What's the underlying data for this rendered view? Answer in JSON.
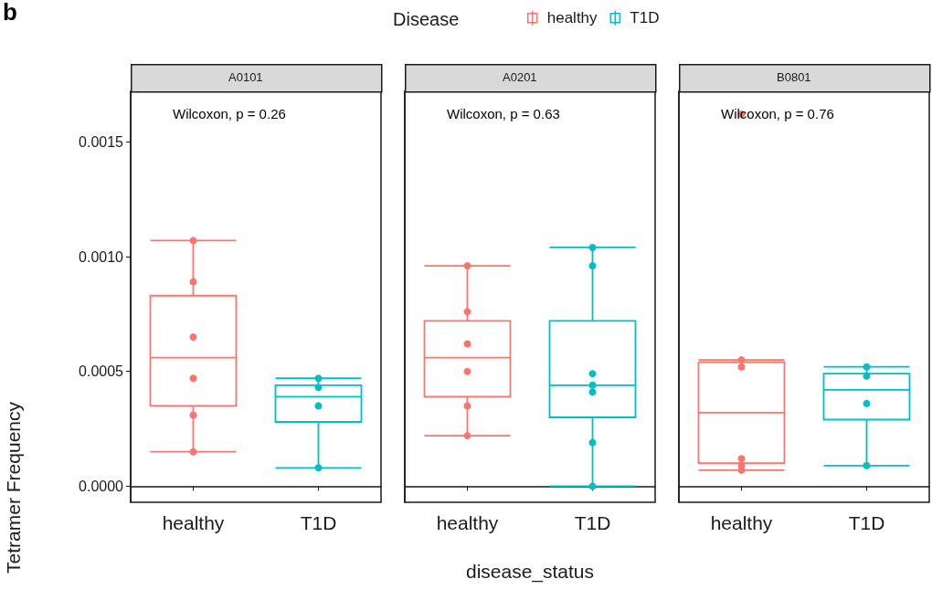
{
  "chart_data": [
    {
      "type": "box",
      "title": "A0101",
      "annotations": [
        "b",
        "Wilcoxon, p = 0.26"
      ],
      "ylabel": "Tetramer Frequency",
      "legend_title": "Disease",
      "legend": "top",
      "categories": [
        "healthy",
        "T1D"
      ],
      "ylim": [
        -7e-05,
        0.00172
      ],
      "yticks": [
        {
          "value": 0,
          "label": "0.0000"
        },
        {
          "value": 0.0005,
          "label": "0.0005"
        },
        {
          "value": 0.001,
          "label": "0.0010"
        },
        {
          "value": 0.0015,
          "label": "0.0015"
        }
      ],
      "series": [
        {
          "color": "#f8766d",
          "x": [
            "healthy"
          ],
          "boxes": [
            {
              "low": 0.00015,
              "q1": 0.00035,
              "median": 0.00056,
              "q3": 0.00083,
              "high": 0.00107
            }
          ]
        },
        {
          "color": "#00bfc4",
          "x": [
            "T1D"
          ],
          "boxes": [
            {
              "low": 8e-05,
              "q1": 0.00028,
              "median": 0.00039,
              "q3": 0.00044,
              "high": 0.00047
            }
          ]
        },
        {
          "type": "scatter",
          "name": "healthy",
          "color": "#f8766d",
          "x": [
            "healthy",
            "healthy",
            "healthy",
            "healthy",
            "healthy",
            "healthy"
          ],
          "values": [
            0.00107,
            0.00089,
            0.00065,
            0.00047,
            0.00031,
            0.00015
          ]
        },
        {
          "type": "scatter",
          "name": "T1D",
          "color": "#00bfc4",
          "x": [
            "T1D",
            "T1D",
            "T1D",
            "T1D"
          ],
          "values": [
            0.00047,
            0.00043,
            0.00035,
            8e-05
          ]
        }
      ]
    },
    {
      "type": "box",
      "title": "A0201",
      "annotations": [
        "Wilcoxon, p = 0.63"
      ],
      "xlabel": "disease_status",
      "tick_labels": "x",
      "categories": [
        "healthy",
        "T1D"
      ],
      "ylim": [
        -7e-05,
        0.00172
      ],
      "series": [
        {
          "color": "#f8766d",
          "x": [
            "healthy"
          ],
          "boxes": [
            {
              "low": 0.00022,
              "q1": 0.00039,
              "median": 0.00056,
              "q3": 0.00072,
              "high": 0.00096
            }
          ]
        },
        {
          "color": "#00bfc4",
          "x": [
            "T1D"
          ],
          "boxes": [
            {
              "low": 0.0,
              "q1": 0.0003,
              "median": 0.00044,
              "q3": 0.00072,
              "high": 0.00104
            }
          ]
        },
        {
          "type": "scatter",
          "color": "#f8766d",
          "x": [
            "healthy",
            "healthy",
            "healthy",
            "healthy",
            "healthy",
            "healthy"
          ],
          "values": [
            0.00096,
            0.00076,
            0.00062,
            0.0005,
            0.00035,
            0.00022
          ]
        },
        {
          "type": "scatter",
          "color": "#00bfc4",
          "x": [
            "T1D",
            "T1D",
            "T1D",
            "T1D",
            "T1D",
            "T1D",
            "T1D"
          ],
          "values": [
            0.00104,
            0.00096,
            0.00049,
            0.00044,
            0.00041,
            0.00019,
            0.0
          ]
        }
      ]
    },
    {
      "type": "box",
      "title": "B0801",
      "annotations": [
        "Wilcoxon, p = 0.76"
      ],
      "tick_labels": "x",
      "categories": [
        "healthy",
        "T1D"
      ],
      "ylim": [
        -7e-05,
        0.00172
      ],
      "series": [
        {
          "color": "#f8766d",
          "x": [
            "healthy"
          ],
          "boxes": [
            {
              "low": 7e-05,
              "q1": 0.0001,
              "median": 0.00032,
              "q3": 0.00054,
              "high": 0.00055
            }
          ]
        },
        {
          "color": "#00bfc4",
          "x": [
            "T1D"
          ],
          "boxes": [
            {
              "low": 9e-05,
              "q1": 0.00029,
              "median": 0.00042,
              "q3": 0.00049,
              "high": 0.00052
            }
          ]
        },
        {
          "type": "scatter",
          "color": "#f8766d",
          "x": [
            "healthy",
            "healthy",
            "healthy",
            "healthy",
            "healthy",
            "healthy"
          ],
          "values": [
            0.00162,
            0.00055,
            0.00052,
            0.00012,
            9e-05,
            7e-05
          ]
        },
        {
          "type": "scatter",
          "color": "#00bfc4",
          "x": [
            "T1D",
            "T1D",
            "T1D",
            "T1D"
          ],
          "values": [
            0.00052,
            0.00048,
            0.00036,
            9e-05
          ]
        }
      ]
    }
  ]
}
